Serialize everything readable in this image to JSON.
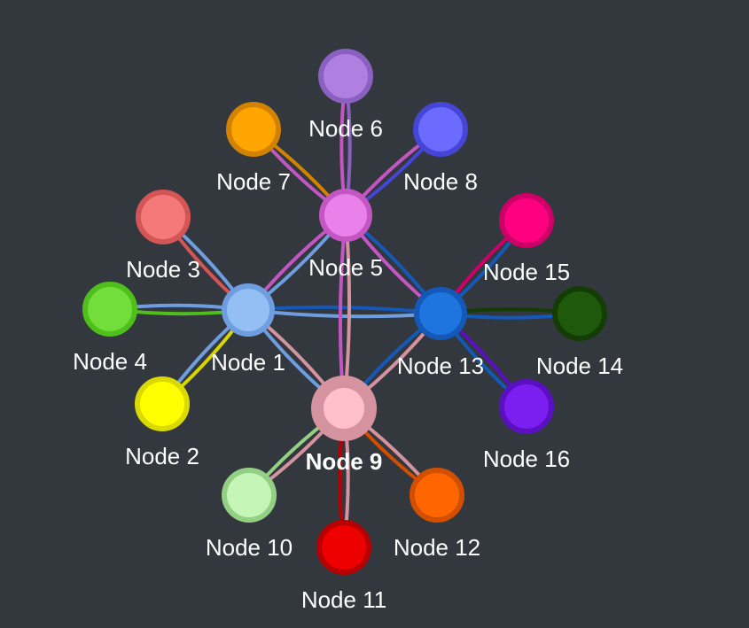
{
  "background": "#33373e",
  "nodes": [
    {
      "id": "n1",
      "label": "Node 1",
      "fill": "#93bff5",
      "stroke": "#6f9ee0"
    },
    {
      "id": "n2",
      "label": "Node 2",
      "fill": "#ffff00",
      "stroke": "#dada00"
    },
    {
      "id": "n3",
      "label": "Node 3",
      "fill": "#f47a7a",
      "stroke": "#d35555"
    },
    {
      "id": "n4",
      "label": "Node 4",
      "fill": "#73dd3c",
      "stroke": "#4fbf1c"
    },
    {
      "id": "n5",
      "label": "Node 5",
      "fill": "#ea80ea",
      "stroke": "#c356c3"
    },
    {
      "id": "n6",
      "label": "Node 6",
      "fill": "#b080e0",
      "stroke": "#8a60c0"
    },
    {
      "id": "n7",
      "label": "Node 7",
      "fill": "#ffa500",
      "stroke": "#d08200"
    },
    {
      "id": "n8",
      "label": "Node 8",
      "fill": "#6b6bff",
      "stroke": "#4545d6"
    },
    {
      "id": "n9",
      "label": "Node 9",
      "fill": "#ffc0cb",
      "stroke": "#d4939f",
      "bold": true
    },
    {
      "id": "n10",
      "label": "Node 10",
      "fill": "#c6f5b8",
      "stroke": "#93d083"
    },
    {
      "id": "n11",
      "label": "Node 11",
      "fill": "#ee0000",
      "stroke": "#b80000"
    },
    {
      "id": "n12",
      "label": "Node 12",
      "fill": "#ff6600",
      "stroke": "#d24f00"
    },
    {
      "id": "n13",
      "label": "Node 13",
      "fill": "#1f75e0",
      "stroke": "#1458b8"
    },
    {
      "id": "n14",
      "label": "Node 14",
      "fill": "#1f5a0c",
      "stroke": "#143d05"
    },
    {
      "id": "n15",
      "label": "Node 15",
      "fill": "#ff0080",
      "stroke": "#cc0066"
    },
    {
      "id": "n16",
      "label": "Node 16",
      "fill": "#7a1ff0",
      "stroke": "#5a10c2"
    }
  ],
  "edges": [
    {
      "from": "n1",
      "to": "n2",
      "color": "#6f9ee0"
    },
    {
      "from": "n1",
      "to": "n2",
      "color": "#d6d600"
    },
    {
      "from": "n1",
      "to": "n3",
      "color": "#6f9ee0"
    },
    {
      "from": "n1",
      "to": "n3",
      "color": "#d35555"
    },
    {
      "from": "n1",
      "to": "n4",
      "color": "#6f9ee0"
    },
    {
      "from": "n1",
      "to": "n4",
      "color": "#4fbf1c"
    },
    {
      "from": "n1",
      "to": "n5",
      "color": "#6f9ee0"
    },
    {
      "from": "n1",
      "to": "n5",
      "color": "#c356c3"
    },
    {
      "from": "n1",
      "to": "n9",
      "color": "#6f9ee0"
    },
    {
      "from": "n1",
      "to": "n9",
      "color": "#d4939f"
    },
    {
      "from": "n1",
      "to": "n13",
      "color": "#6f9ee0"
    },
    {
      "from": "n1",
      "to": "n13",
      "color": "#1458b8"
    },
    {
      "from": "n5",
      "to": "n6",
      "color": "#8a60c0"
    },
    {
      "from": "n5",
      "to": "n6",
      "color": "#c356c3"
    },
    {
      "from": "n5",
      "to": "n7",
      "color": "#d08200"
    },
    {
      "from": "n5",
      "to": "n7",
      "color": "#c356c3"
    },
    {
      "from": "n5",
      "to": "n8",
      "color": "#4545d6"
    },
    {
      "from": "n5",
      "to": "n8",
      "color": "#c356c3"
    },
    {
      "from": "n5",
      "to": "n9",
      "color": "#c356c3"
    },
    {
      "from": "n5",
      "to": "n9",
      "color": "#d4939f"
    },
    {
      "from": "n5",
      "to": "n13",
      "color": "#c356c3"
    },
    {
      "from": "n5",
      "to": "n13",
      "color": "#1458b8"
    },
    {
      "from": "n9",
      "to": "n10",
      "color": "#93d083"
    },
    {
      "from": "n9",
      "to": "n10",
      "color": "#d4939f"
    },
    {
      "from": "n9",
      "to": "n11",
      "color": "#b80000"
    },
    {
      "from": "n9",
      "to": "n11",
      "color": "#d4939f"
    },
    {
      "from": "n9",
      "to": "n12",
      "color": "#d24f00"
    },
    {
      "from": "n9",
      "to": "n12",
      "color": "#d4939f"
    },
    {
      "from": "n9",
      "to": "n13",
      "color": "#d4939f"
    },
    {
      "from": "n9",
      "to": "n13",
      "color": "#1458b8"
    },
    {
      "from": "n13",
      "to": "n14",
      "color": "#1458b8"
    },
    {
      "from": "n13",
      "to": "n14",
      "color": "#143d05"
    },
    {
      "from": "n13",
      "to": "n15",
      "color": "#1458b8"
    },
    {
      "from": "n13",
      "to": "n15",
      "color": "#cc0066"
    },
    {
      "from": "n13",
      "to": "n16",
      "color": "#1458b8"
    },
    {
      "from": "n13",
      "to": "n16",
      "color": "#5a10c2"
    }
  ]
}
